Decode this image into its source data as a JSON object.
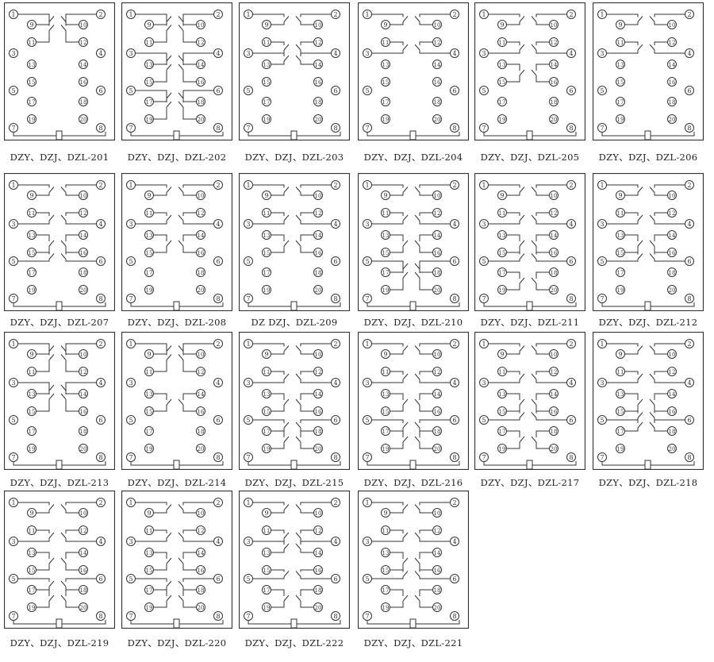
{
  "colors": {
    "line": "#333333",
    "background": "#ffffff"
  },
  "terminal_labels": [
    "1",
    "2",
    "3",
    "4",
    "5",
    "6",
    "7",
    "8",
    "9",
    "10",
    "11",
    "12",
    "13",
    "14",
    "15",
    "16",
    "17",
    "18",
    "19",
    "20"
  ],
  "panels": [
    {
      "label": "DZY、DZJ、DZL-201",
      "links": [
        [
          1,
          9
        ],
        [
          1,
          11
        ],
        [
          2,
          10
        ],
        [
          2,
          12
        ]
      ]
    },
    {
      "label": "DZY、DZJ、DZL-202",
      "links": [
        [
          1,
          9
        ],
        [
          1,
          11
        ],
        [
          2,
          10
        ],
        [
          2,
          12
        ],
        [
          3,
          13
        ],
        [
          3,
          15
        ],
        [
          4,
          14
        ],
        [
          4,
          16
        ],
        [
          5,
          17
        ],
        [
          5,
          19
        ],
        [
          6,
          18
        ],
        [
          6,
          20
        ]
      ]
    },
    {
      "label": "DZY、DZJ、DZL-203",
      "links": [
        [
          1,
          9
        ],
        [
          11,
          3
        ],
        [
          3,
          13
        ],
        [
          2,
          10
        ],
        [
          12,
          4
        ],
        [
          4,
          14
        ]
      ]
    },
    {
      "label": "DZY、DZJ、DZL-204",
      "links": [
        [
          1,
          9
        ],
        [
          11,
          3
        ],
        [
          2,
          10
        ],
        [
          12,
          4
        ]
      ]
    },
    {
      "label": "DZY、DZJ、DZL-205",
      "links": [
        [
          1,
          9
        ],
        [
          11,
          3
        ],
        [
          13,
          15
        ],
        [
          2,
          10
        ],
        [
          12,
          4
        ],
        [
          14,
          16
        ]
      ]
    },
    {
      "label": "DZY、DZJ、DZL-206",
      "links": [
        [
          1,
          9
        ],
        [
          11,
          3
        ],
        [
          2,
          10
        ],
        [
          12,
          4
        ]
      ]
    },
    {
      "label": "DZY、DZJ、DZL-207",
      "links": [
        [
          1,
          9
        ],
        [
          11,
          3
        ],
        [
          13,
          15
        ],
        [
          15,
          5
        ],
        [
          2,
          10
        ],
        [
          12,
          4
        ],
        [
          14,
          16
        ],
        [
          16,
          6
        ]
      ]
    },
    {
      "label": "DZY、DZJ、DZL-208",
      "links": [
        [
          1,
          9
        ],
        [
          11,
          3
        ],
        [
          13,
          15
        ],
        [
          2,
          10
        ],
        [
          12,
          4
        ],
        [
          14,
          16
        ]
      ]
    },
    {
      "label": "DZ    DZJ、DZL-209",
      "links": [
        [
          1,
          9
        ],
        [
          11,
          3
        ],
        [
          13,
          15
        ],
        [
          2,
          10
        ],
        [
          12,
          4
        ],
        [
          14,
          16
        ]
      ]
    },
    {
      "label": "DZY、DZJ、DZL-210",
      "links": [
        [
          1,
          9
        ],
        [
          11,
          3
        ],
        [
          13,
          15
        ],
        [
          5,
          17
        ],
        [
          5,
          19
        ],
        [
          2,
          10
        ],
        [
          12,
          4
        ],
        [
          14,
          16
        ],
        [
          6,
          18
        ],
        [
          6,
          20
        ]
      ]
    },
    {
      "label": "DZY、DZJ、DZL-211",
      "links": [
        [
          1,
          9
        ],
        [
          11,
          3
        ],
        [
          13,
          15
        ],
        [
          15,
          5
        ],
        [
          17,
          19
        ],
        [
          2,
          10
        ],
        [
          12,
          4
        ],
        [
          14,
          16
        ],
        [
          16,
          6
        ],
        [
          18,
          20
        ]
      ]
    },
    {
      "label": "DZY、DZJ、DZL-212",
      "links": [
        [
          1,
          9
        ],
        [
          11,
          3
        ],
        [
          13,
          15
        ],
        [
          15,
          5
        ],
        [
          2,
          10
        ],
        [
          12,
          4
        ],
        [
          14,
          16
        ],
        [
          16,
          6
        ]
      ]
    },
    {
      "label": "DZY、DZJ、DZL-213",
      "links": [
        [
          1,
          9
        ],
        [
          1,
          11
        ],
        [
          2,
          10
        ],
        [
          2,
          12
        ],
        [
          3,
          13
        ],
        [
          3,
          15
        ],
        [
          4,
          14
        ],
        [
          4,
          16
        ]
      ]
    },
    {
      "label": "DZY、DZJ、DZL-214",
      "links": [
        [
          1,
          9
        ],
        [
          1,
          11
        ],
        [
          2,
          10
        ],
        [
          2,
          12
        ],
        [
          13,
          15
        ],
        [
          14,
          16
        ]
      ]
    },
    {
      "label": "DZY、DZJ、DZL-215",
      "links": [
        [
          1,
          9
        ],
        [
          11,
          3
        ],
        [
          13,
          15
        ],
        [
          5,
          17
        ],
        [
          17,
          19
        ],
        [
          2,
          10
        ],
        [
          12,
          4
        ],
        [
          14,
          16
        ],
        [
          6,
          18
        ],
        [
          18,
          20
        ]
      ]
    },
    {
      "label": "DZY、DZJ、DZL-216",
      "links": [
        [
          1,
          9
        ],
        [
          11,
          3
        ],
        [
          13,
          15
        ],
        [
          5,
          17
        ],
        [
          17,
          19
        ],
        [
          2,
          10
        ],
        [
          12,
          4
        ],
        [
          14,
          16
        ],
        [
          6,
          18
        ],
        [
          18,
          20
        ]
      ]
    },
    {
      "label": "DZY、DZJ、DZL-217",
      "links": [
        [
          1,
          9
        ],
        [
          11,
          3
        ],
        [
          13,
          15
        ],
        [
          15,
          5
        ],
        [
          17,
          19
        ],
        [
          2,
          10
        ],
        [
          12,
          4
        ],
        [
          14,
          16
        ],
        [
          16,
          6
        ],
        [
          18,
          20
        ]
      ]
    },
    {
      "label": "DZY、DZJ、DZL-218",
      "links": [
        [
          1,
          9
        ],
        [
          11,
          3
        ],
        [
          13,
          15
        ],
        [
          15,
          5
        ],
        [
          17,
          5
        ],
        [
          2,
          10
        ],
        [
          12,
          4
        ],
        [
          14,
          16
        ],
        [
          16,
          6
        ],
        [
          18,
          6
        ]
      ]
    },
    {
      "label": "DZY、DZJ、DZL-219",
      "links": [
        [
          1,
          9
        ],
        [
          11,
          3
        ],
        [
          13,
          15
        ],
        [
          5,
          17
        ],
        [
          17,
          19
        ],
        [
          2,
          10
        ],
        [
          12,
          4
        ],
        [
          14,
          16
        ],
        [
          6,
          18
        ],
        [
          18,
          20
        ]
      ]
    },
    {
      "label": "DZY、DZJ、DZL-220",
      "links": [
        [
          1,
          9
        ],
        [
          11,
          3
        ],
        [
          13,
          15
        ],
        [
          5,
          17
        ],
        [
          17,
          19
        ],
        [
          2,
          10
        ],
        [
          12,
          4
        ],
        [
          14,
          16
        ],
        [
          6,
          18
        ],
        [
          18,
          20
        ]
      ]
    },
    {
      "label": "DZY、DZJ、DZL-222",
      "links": [
        [
          1,
          9
        ],
        [
          11,
          3
        ],
        [
          13,
          3
        ],
        [
          15,
          5
        ],
        [
          17,
          19
        ],
        [
          2,
          10
        ],
        [
          12,
          4
        ],
        [
          14,
          4
        ],
        [
          16,
          6
        ],
        [
          18,
          20
        ]
      ]
    },
    {
      "label": "DZY、DZJ、DZL-221",
      "links": [
        [
          1,
          9
        ],
        [
          11,
          3
        ],
        [
          13,
          15
        ],
        [
          15,
          5
        ],
        [
          17,
          19
        ],
        [
          2,
          10
        ],
        [
          12,
          4
        ],
        [
          14,
          16
        ],
        [
          16,
          6
        ],
        [
          18,
          20
        ]
      ]
    }
  ]
}
